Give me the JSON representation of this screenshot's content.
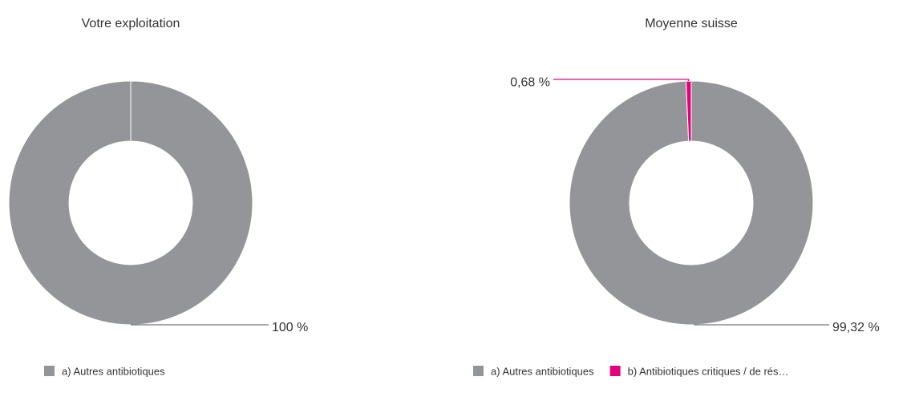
{
  "chart_data": [
    {
      "type": "donut",
      "title": "Votre exploitation",
      "categories": [
        "a) Autres antibiotiques"
      ],
      "values": [
        100
      ],
      "value_labels": [
        "100 %"
      ],
      "colors": [
        "#939598"
      ]
    },
    {
      "type": "donut",
      "title": "Moyenne suisse",
      "categories": [
        "a) Autres antibiotiques",
        "b) Antibiotiques critiques / de rés…"
      ],
      "values": [
        99.32,
        0.68
      ],
      "value_labels": [
        "99,32 %",
        "0,68 %"
      ],
      "colors": [
        "#939598",
        "#e5007e"
      ]
    }
  ]
}
